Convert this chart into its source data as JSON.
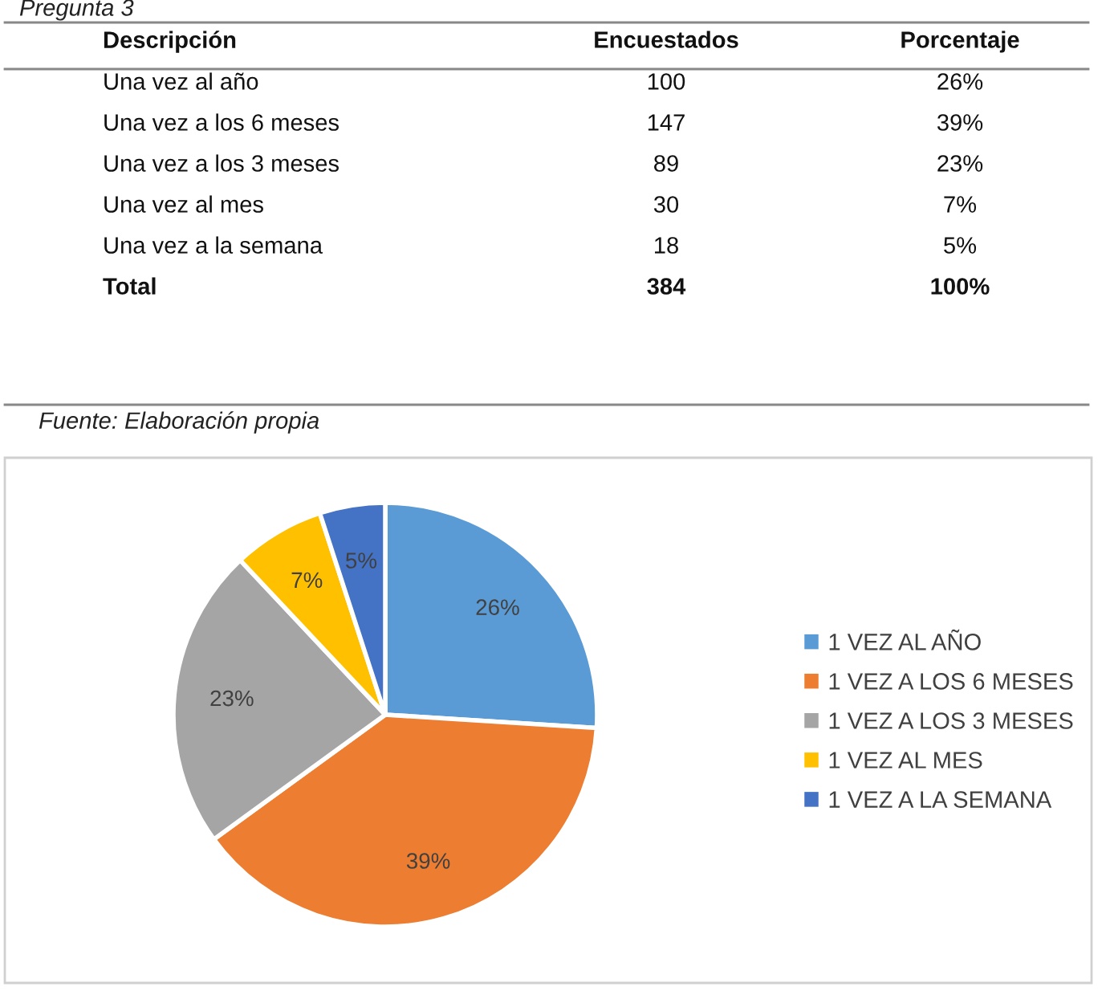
{
  "chart_data": {
    "type": "pie",
    "categories": [
      "1 VEZ AL AÑO",
      "1 VEZ A LOS 6 MESES",
      "1 VEZ A LOS 3 MESES",
      "1 VEZ AL MES",
      "1 VEZ A LA SEMANA"
    ],
    "values": [
      26,
      39,
      23,
      7,
      5
    ],
    "colors": [
      "#5b9bd5",
      "#ed7d31",
      "#a5a5a5",
      "#ffc000",
      "#4472c4"
    ],
    "value_labels": [
      "26%",
      "39%",
      "23%",
      "7%",
      "5%"
    ],
    "legend": "right",
    "annotations": [
      "Pregunta 3",
      "Descripción",
      "Encuestados",
      "Porcentaje",
      "Una vez al año",
      "100",
      "26%",
      "Una vez a los 6 meses",
      "147",
      "39%",
      "Una vez a los 3 meses",
      "89",
      "23%",
      "Una vez al mes",
      "30",
      "7%",
      "Una vez a la semana",
      "18",
      "5%",
      "Total",
      "384",
      "100%",
      "Fuente: Elaboración propia"
    ]
  }
}
